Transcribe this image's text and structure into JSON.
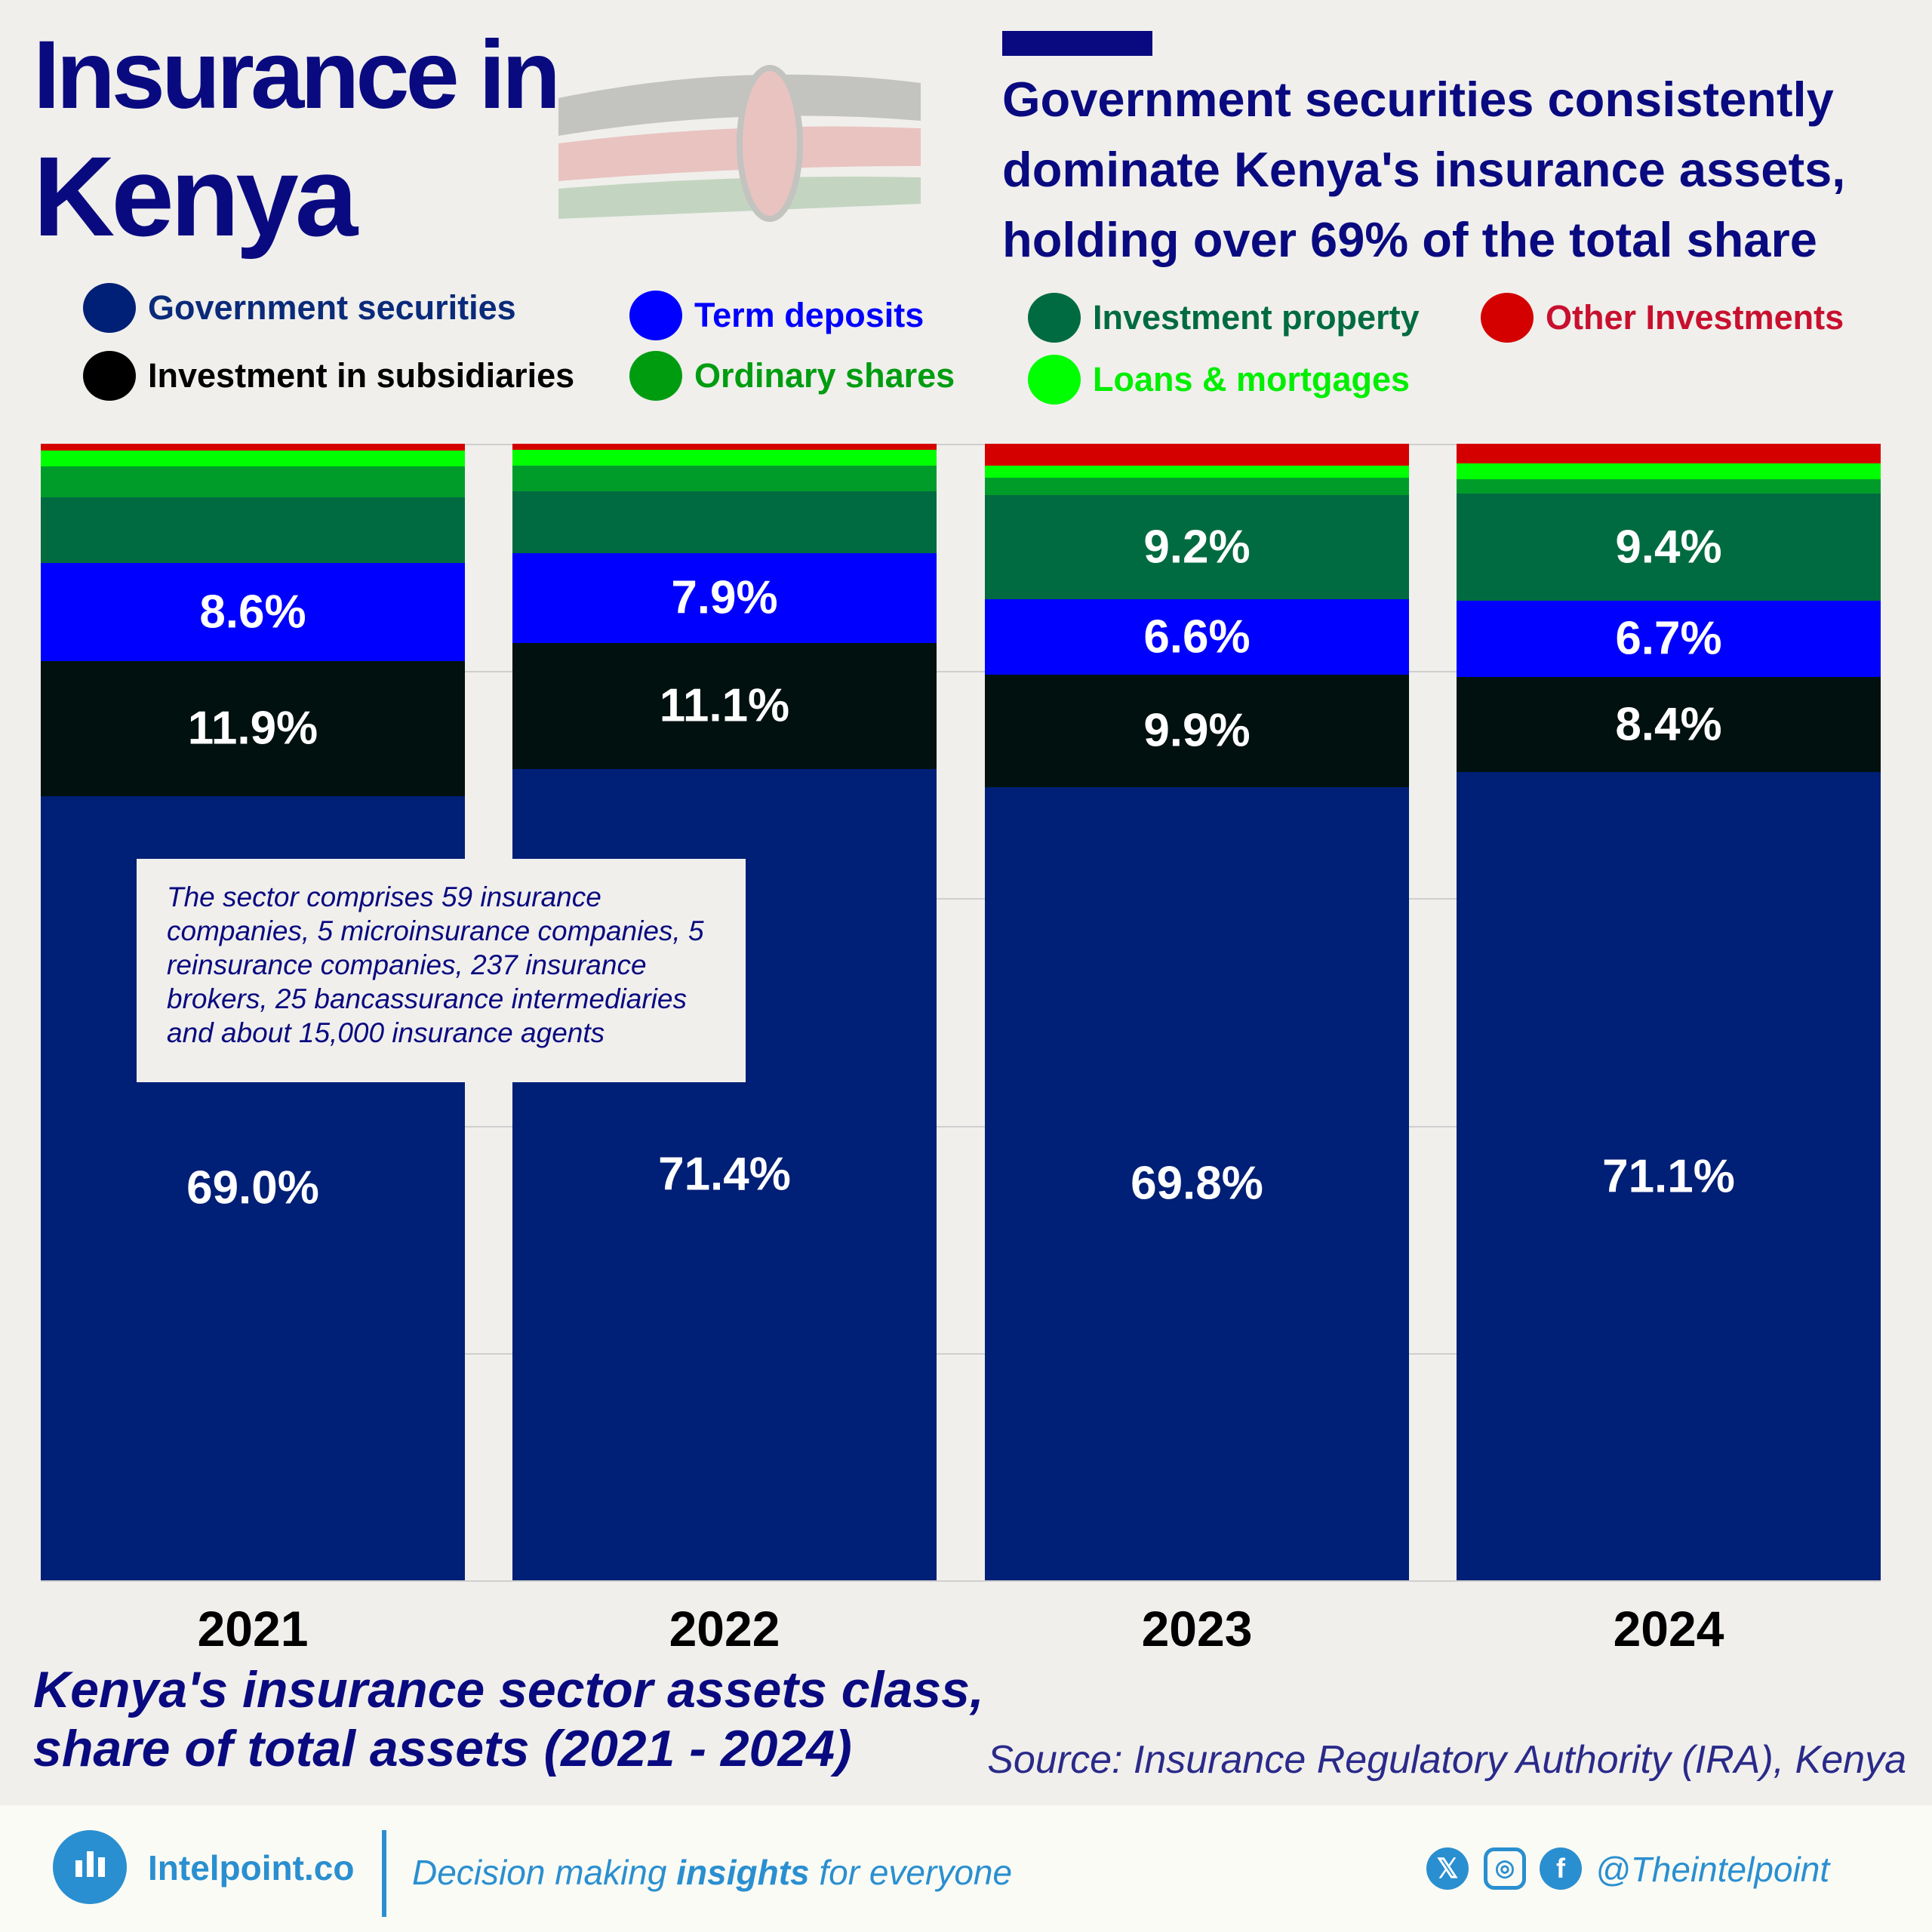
{
  "header": {
    "title_line1": "Insurance in",
    "title_line2": "Kenya",
    "subtitle": "Government securities consistently dominate Kenya's insurance assets, holding over 69% of the total share"
  },
  "legend": [
    {
      "label": "Government  securities",
      "color": "#001f76",
      "text_color": "#0a2a7a"
    },
    {
      "label": "Term deposits",
      "color": "#0000ff",
      "text_color": "#0000ff"
    },
    {
      "label": "Investment property",
      "color": "#006b40",
      "text_color": "#006b40"
    },
    {
      "label": "Other Investments",
      "color": "#d40000",
      "text_color": "#c8102e"
    },
    {
      "label": "Investment in subsidiaries",
      "color": "#000000",
      "text_color": "#000000"
    },
    {
      "label": "Ordinary shares",
      "color": "#009c10",
      "text_color": "#009c10"
    },
    {
      "label": "Loans & mortgages",
      "color": "#00ff00",
      "text_color": "#00ee00"
    }
  ],
  "chart_data": {
    "type": "bar",
    "stacked": true,
    "categories": [
      "2021",
      "2022",
      "2023",
      "2024"
    ],
    "ylim": [
      0,
      100
    ],
    "grid": true,
    "series": [
      {
        "name": "Government  securities",
        "color": "#001f76",
        "values": [
          69.0,
          71.4,
          69.8,
          71.1
        ],
        "labels": [
          "69.0%",
          "71.4%",
          "69.8%",
          "71.1%"
        ]
      },
      {
        "name": "Investment in subsidiaries",
        "color": "#00110f",
        "values": [
          11.9,
          11.1,
          9.9,
          8.4
        ],
        "labels": [
          "11.9%",
          "11.1%",
          "9.9%",
          "8.4%"
        ]
      },
      {
        "name": "Term deposits",
        "color": "#0000ff",
        "values": [
          8.6,
          7.9,
          6.6,
          6.7
        ],
        "labels": [
          "8.6%",
          "7.9%",
          "6.6%",
          "6.7%"
        ]
      },
      {
        "name": "Investment property",
        "color": "#006b40",
        "values": [
          5.8,
          5.4,
          9.2,
          9.4
        ],
        "labels": [
          "",
          "",
          "9.2%",
          "9.4%"
        ]
      },
      {
        "name": "Ordinary shares",
        "color": "#009c2a",
        "values": [
          2.7,
          2.3,
          1.5,
          1.3
        ],
        "labels": [
          "",
          "",
          "",
          ""
        ]
      },
      {
        "name": "Loans & mortgages",
        "color": "#00ff00",
        "values": [
          1.4,
          1.4,
          1.1,
          1.4
        ],
        "labels": [
          "",
          "",
          "",
          ""
        ]
      },
      {
        "name": "Other Investments",
        "color": "#d40000",
        "values": [
          0.6,
          0.5,
          1.9,
          1.7
        ],
        "labels": [
          "",
          "",
          "",
          ""
        ]
      }
    ]
  },
  "note": "The sector comprises 59 insurance companies, 5 microinsurance companies, 5 reinsurance companies, 237 insurance brokers, 25 bancassurance intermediaries and about 15,000 insurance agents",
  "caption_line1": "Kenya's insurance sector assets class,",
  "caption_line2": "share of total assets (2021 - 2024)",
  "source": "Source: Insurance Regulatory Authority (IRA), Kenya",
  "footer": {
    "brand": "Intelpoint.co",
    "tag_pre": "Decision making ",
    "tag_bold": "insights",
    "tag_post": " for everyone",
    "handle": "@Theintelpoint",
    "icons": [
      "x-icon",
      "instagram-icon",
      "facebook-icon"
    ]
  }
}
